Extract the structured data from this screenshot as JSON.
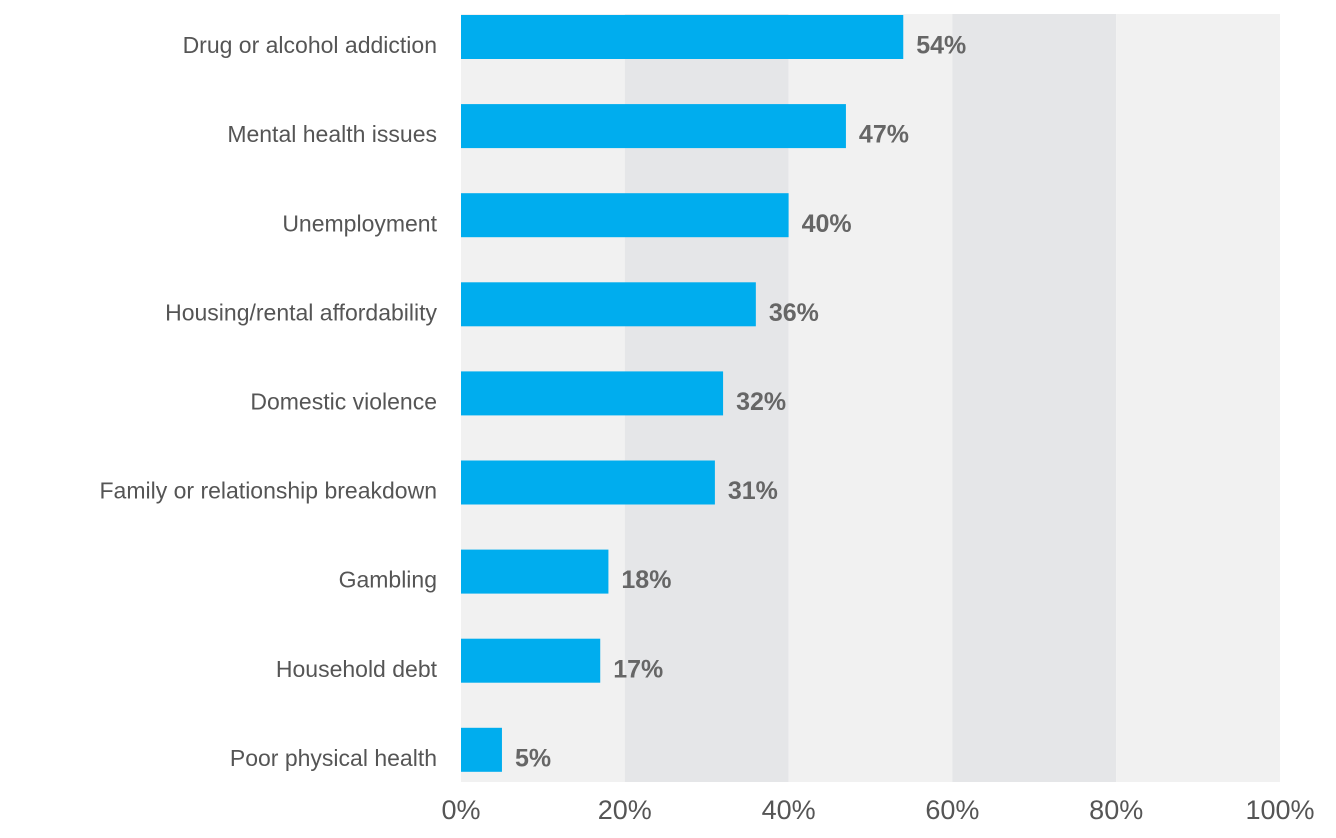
{
  "chart_data": {
    "type": "hbar",
    "categories": [
      "Drug or alcohol addiction",
      "Mental health issues",
      "Unemployment",
      "Housing/rental affordability",
      "Domestic violence",
      "Family or relationship breakdown",
      "Gambling",
      "Household debt",
      "Poor physical health"
    ],
    "values": [
      54,
      47,
      40,
      36,
      32,
      31,
      18,
      17,
      5
    ],
    "value_labels": [
      "54%",
      "47%",
      "40%",
      "36%",
      "32%",
      "31%",
      "18%",
      "17%",
      "5%"
    ],
    "color": "#00adee",
    "xlim": [
      0,
      100
    ],
    "xticks": [
      {
        "value": 0,
        "label": "0%"
      },
      {
        "value": 20,
        "label": "20%"
      },
      {
        "value": 40,
        "label": "40%"
      },
      {
        "value": 60,
        "label": "60%"
      },
      {
        "value": 80,
        "label": "80%"
      },
      {
        "value": 100,
        "label": "100%"
      }
    ]
  }
}
